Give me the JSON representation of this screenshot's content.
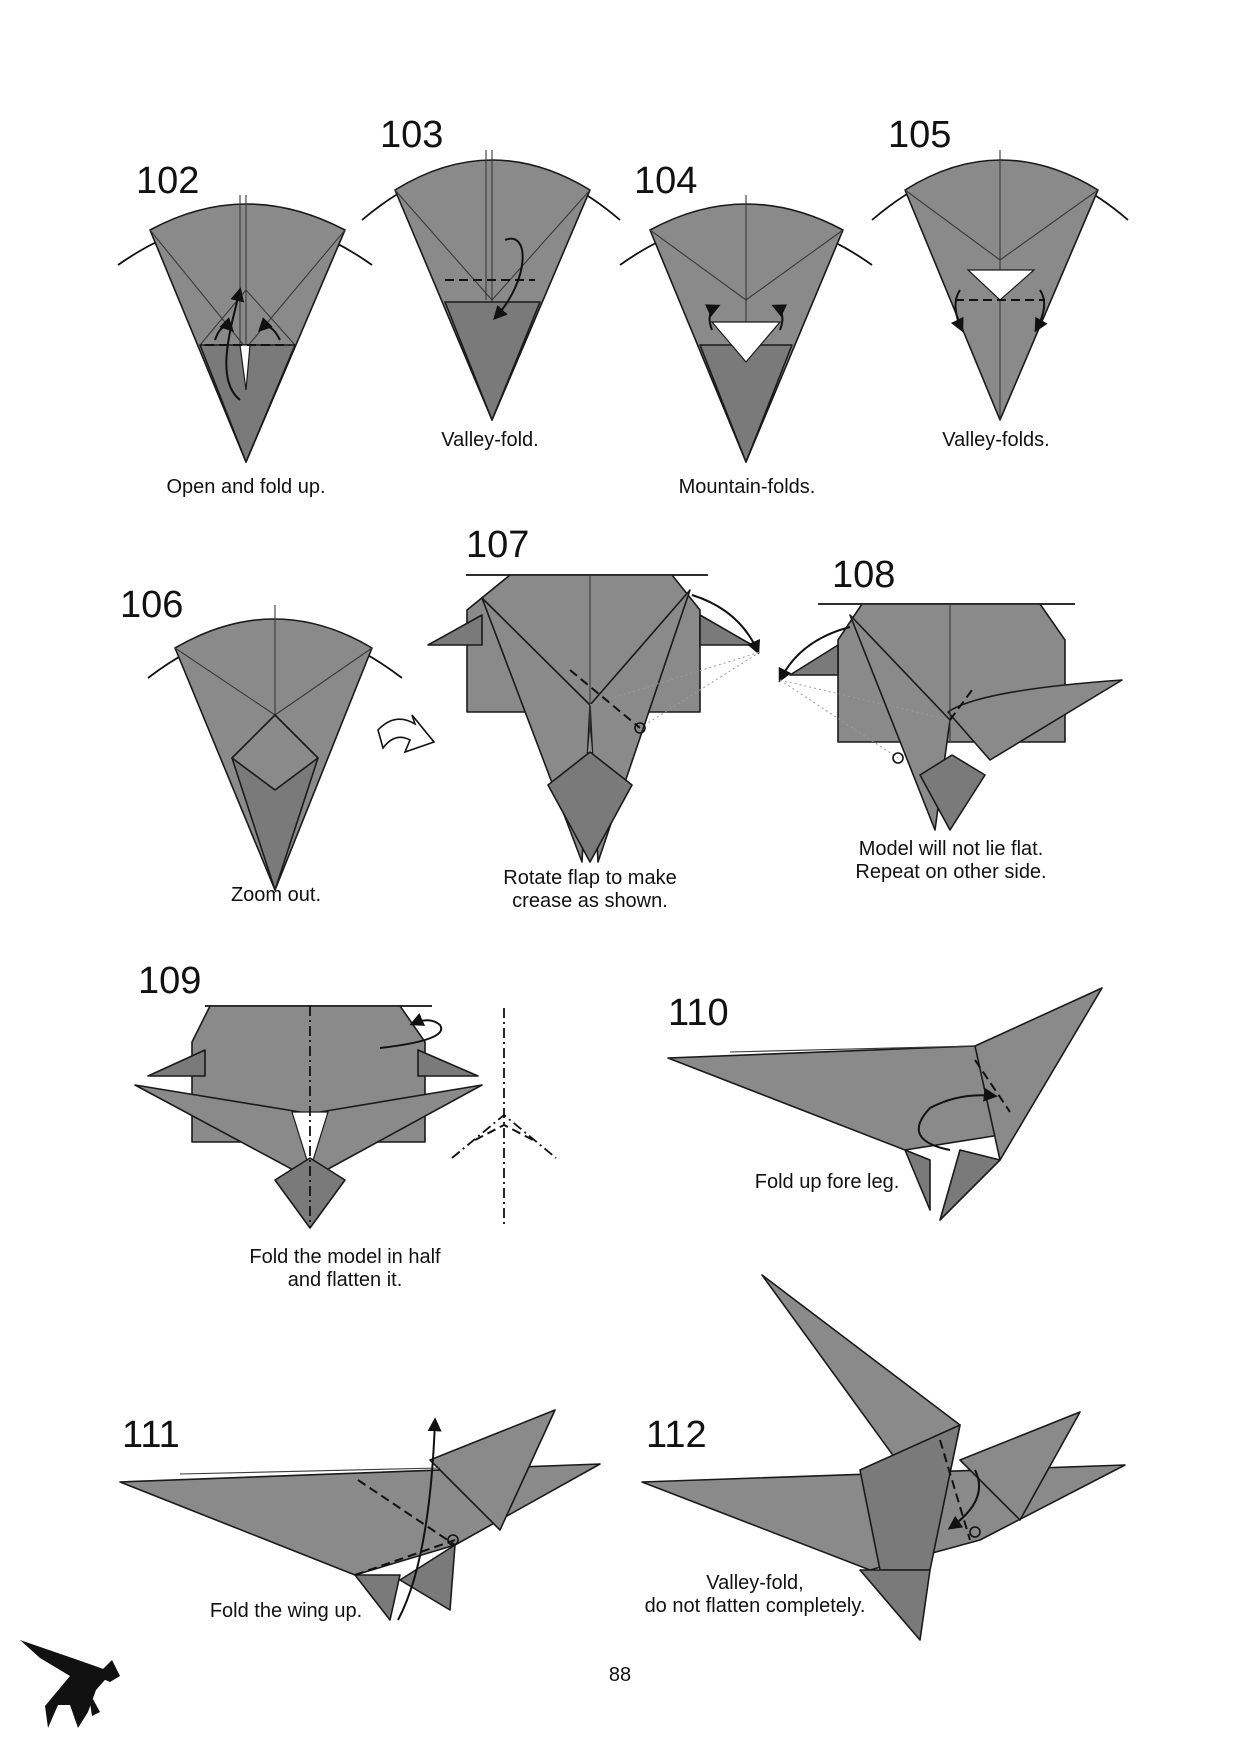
{
  "steps": [
    {
      "number": "102",
      "caption": [
        "Open and fold up."
      ]
    },
    {
      "number": "103",
      "caption": [
        "Valley-fold."
      ]
    },
    {
      "number": "104",
      "caption": [
        "Mountain-folds."
      ]
    },
    {
      "number": "105",
      "caption": [
        "Valley-folds."
      ]
    },
    {
      "number": "106",
      "caption": [
        "Zoom out."
      ]
    },
    {
      "number": "107",
      "caption": [
        "Rotate flap to make",
        "crease as shown."
      ]
    },
    {
      "number": "108",
      "caption": [
        "Model will not lie flat.",
        "Repeat on other side."
      ]
    },
    {
      "number": "109",
      "caption": [
        "Fold the model in half",
        "and flatten it."
      ]
    },
    {
      "number": "110",
      "caption": [
        "Fold up fore leg."
      ]
    },
    {
      "number": "111",
      "caption": [
        "Fold the wing up."
      ]
    },
    {
      "number": "112",
      "caption": [
        "Valley-fold,",
        "do not flatten completely."
      ]
    }
  ],
  "page_number": "88",
  "logo": {
    "icon": "pegasus-silhouette-icon"
  },
  "colors": {
    "paper": "#8a8a8a",
    "line": "#1a1a1a",
    "background": "#ffffff"
  }
}
